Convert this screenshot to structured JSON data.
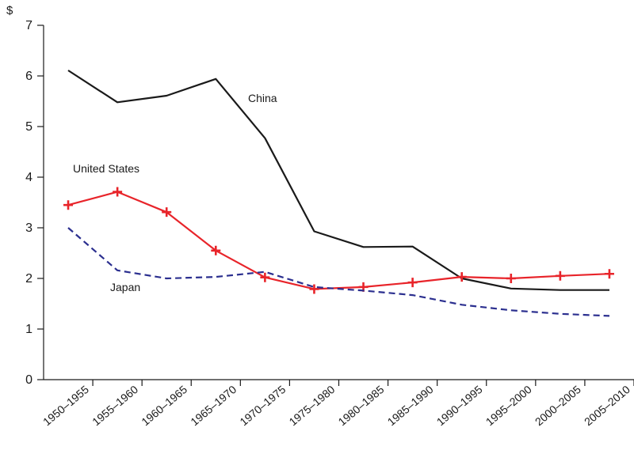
{
  "chart_data": {
    "type": "line",
    "title": "",
    "xlabel": "",
    "ylabel": "$",
    "ylim": [
      0,
      7
    ],
    "yticks": [
      0,
      1,
      2,
      3,
      4,
      5,
      6,
      7
    ],
    "grid": false,
    "categories": [
      "1950–1955",
      "1955–1960",
      "1960–1965",
      "1965–1970",
      "1970–1975",
      "1975–1980",
      "1980–1985",
      "1985–1990",
      "1990–1995",
      "1995–2000",
      "2000–2005",
      "2005–2010"
    ],
    "series": [
      {
        "name": "China",
        "color": "#1a1a1a",
        "style": "solid",
        "marker": "none",
        "values": [
          6.11,
          5.48,
          5.61,
          5.94,
          4.77,
          2.93,
          2.62,
          2.63,
          2.0,
          1.8,
          1.77,
          1.77
        ]
      },
      {
        "name": "United States",
        "color": "#e8242a",
        "style": "solid",
        "marker": "plus",
        "values": [
          3.45,
          3.71,
          3.31,
          2.55,
          2.02,
          1.79,
          1.83,
          1.92,
          2.03,
          2.0,
          2.05,
          2.09
        ]
      },
      {
        "name": "Japan",
        "color": "#2b2f8f",
        "style": "dashed",
        "marker": "none",
        "values": [
          3.0,
          2.16,
          2.0,
          2.03,
          2.13,
          1.83,
          1.76,
          1.67,
          1.48,
          1.37,
          1.3,
          1.26
        ]
      }
    ]
  }
}
